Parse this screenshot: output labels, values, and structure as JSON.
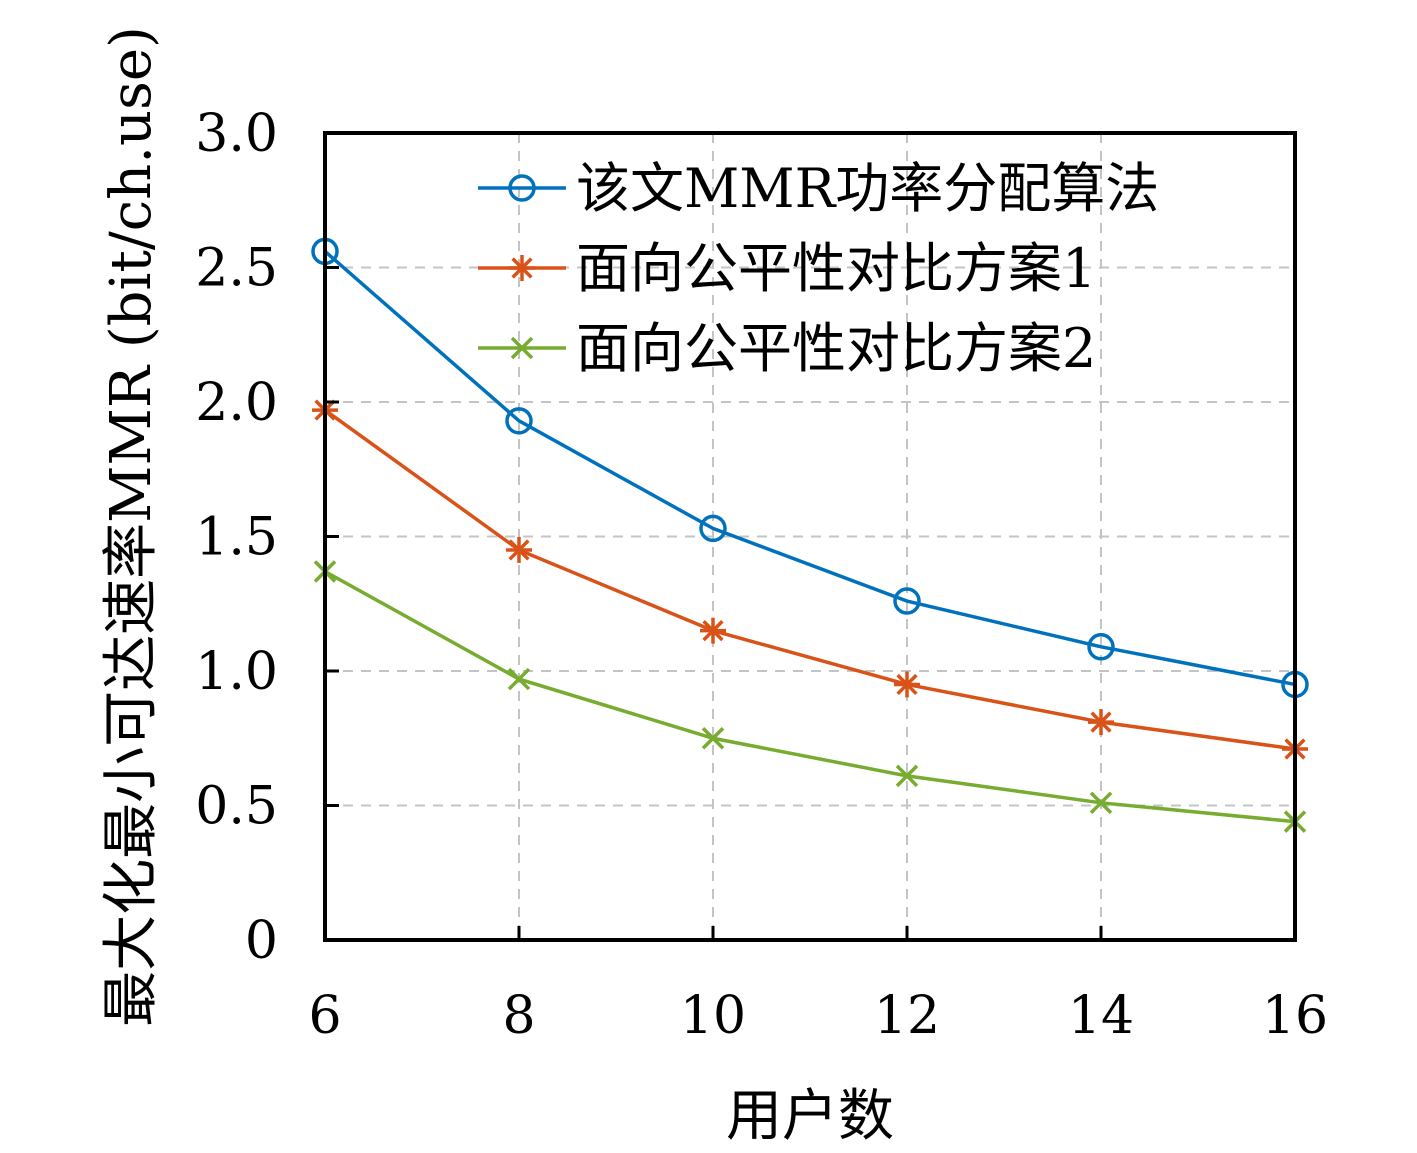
{
  "chart_data": {
    "type": "line",
    "xlabel": "用户数",
    "ylabel": "最大化最小可达速率MMR (bit/ch.use)",
    "x": [
      6,
      8,
      10,
      12,
      14,
      16
    ],
    "x_ticks": [
      "6",
      "8",
      "10",
      "12",
      "14",
      "16"
    ],
    "y_ticks": [
      "0",
      "0.5",
      "1.0",
      "1.5",
      "2.0",
      "2.5",
      "3.0"
    ],
    "xlim": [
      6,
      16
    ],
    "ylim": [
      0,
      3.0
    ],
    "grid": true,
    "legend_position": "top-right",
    "series": [
      {
        "name": "该文MMR功率分配算法",
        "marker": "circle",
        "color": "#0072BD",
        "values": [
          2.56,
          1.93,
          1.53,
          1.26,
          1.09,
          0.95
        ]
      },
      {
        "name": "面向公平性对比方案1",
        "marker": "asterisk",
        "color": "#D95319",
        "values": [
          1.97,
          1.45,
          1.15,
          0.95,
          0.81,
          0.71
        ]
      },
      {
        "name": "面向公平性对比方案2",
        "marker": "x",
        "color": "#77AC30",
        "values": [
          1.37,
          0.97,
          0.75,
          0.61,
          0.51,
          0.44
        ]
      }
    ]
  }
}
